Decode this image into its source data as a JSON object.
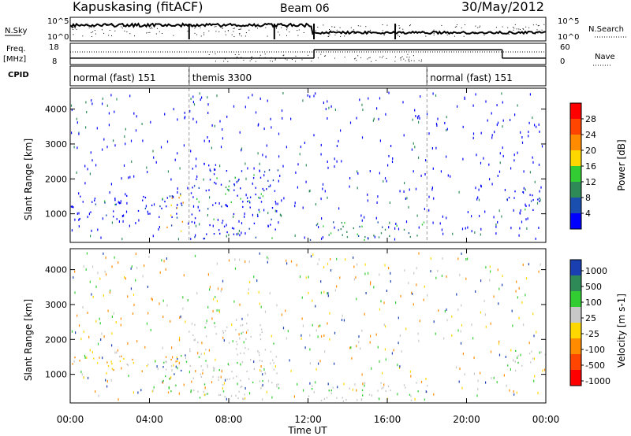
{
  "header": {
    "station": "Kapuskasing (fitACF)",
    "beam": "Beam 06",
    "date": "30/May/2012"
  },
  "panels": {
    "nsky_label": "N.Sky",
    "nsearch_label": "N.Search",
    "freq_label_line1": "Freq.",
    "freq_label_line2": "[MHz]",
    "nave_label": "Nave",
    "cpid_label": "CPID",
    "nsky_ticks": [
      "10^5",
      "10^0"
    ],
    "nsearch_ticks": [
      "10^5",
      "10^0"
    ],
    "freq_ticks": [
      "18",
      "8"
    ],
    "nave_ticks": [
      "60",
      "0"
    ],
    "cpid_segments": [
      {
        "label": "normal (fast) 151",
        "start_hour": 0,
        "end_hour": 6
      },
      {
        "label": "themis 3300",
        "start_hour": 6,
        "end_hour": 18
      },
      {
        "label": "normal (fast) 151",
        "start_hour": 18,
        "end_hour": 24
      }
    ]
  },
  "axes": {
    "ylabel": "Slant Range [km]",
    "xlabel": "Time UT",
    "yticks": [
      "1000",
      "2000",
      "3000",
      "4000"
    ],
    "xticks": [
      "00:00",
      "04:00",
      "08:00",
      "12:00",
      "16:00",
      "20:00",
      "00:00"
    ]
  },
  "power_colorbar": {
    "label": "Power [dB]",
    "ticks": [
      "28",
      "24",
      "20",
      "16",
      "12",
      "8",
      "4"
    ],
    "colors": [
      "#0000ff",
      "#1a4fb0",
      "#2e8b57",
      "#32cd32",
      "#ffd700",
      "#ff8c00",
      "#ff4500",
      "#ff0000"
    ]
  },
  "velocity_colorbar": {
    "label": "Velocity [m s-1]",
    "ticks": [
      "1000",
      "500",
      "100",
      "25",
      "-25",
      "-100",
      "-500",
      "-1000"
    ],
    "colors": [
      "#1a3fb0",
      "#2e8b57",
      "#32cd32",
      "#c8c8c8",
      "#ffd700",
      "#ff8c00",
      "#ff4500",
      "#ff0000"
    ]
  },
  "chart_data": {
    "type": "heatmap",
    "title": "Kapuskasing (fitACF) Beam 06 30/May/2012",
    "xlabel": "Time UT",
    "ylabel": "Slant Range [km]",
    "xlim_hours": [
      0,
      24
    ],
    "ylim_km": [
      180,
      4600
    ],
    "power_regions": [
      {
        "t0": 0.0,
        "t1": 5.6,
        "r0": 1100,
        "r1": 1550,
        "level": "low"
      },
      {
        "t0": 0.3,
        "t1": 5.5,
        "r0": 850,
        "r1": 1100,
        "level": "low"
      },
      {
        "t0": 4.6,
        "t1": 5.9,
        "r0": 500,
        "r1": 1600,
        "level": "high"
      },
      {
        "t0": 6.0,
        "t1": 10.5,
        "r0": 300,
        "r1": 2500,
        "level": "low"
      },
      {
        "t0": 7.8,
        "t1": 8.8,
        "r0": 1300,
        "r1": 2200,
        "level": "mid"
      },
      {
        "t0": 12.0,
        "t1": 18.0,
        "r0": 250,
        "r1": 800,
        "level": "mid"
      },
      {
        "t0": 22.0,
        "t1": 24.0,
        "r0": 1100,
        "r1": 1700,
        "level": "low"
      }
    ],
    "velocity_regions": [
      {
        "t0": 0.0,
        "t1": 5.6,
        "r0": 1100,
        "r1": 1550,
        "level": "neg"
      },
      {
        "t0": 4.6,
        "t1": 5.9,
        "r0": 500,
        "r1": 1600,
        "level": "mixed"
      },
      {
        "t0": 6.0,
        "t1": 10.5,
        "r0": 300,
        "r1": 2500,
        "level": "zero"
      },
      {
        "t0": 12.0,
        "t1": 18.0,
        "r0": 250,
        "r1": 800,
        "level": "zero"
      },
      {
        "t0": 22.0,
        "t1": 24.0,
        "r0": 1100,
        "r1": 1700,
        "level": "zero"
      }
    ],
    "freq_mhz": [
      {
        "t0": 0,
        "t1": 6,
        "v": 11
      },
      {
        "t0": 6,
        "t1": 12.3,
        "v": 11
      },
      {
        "t0": 12.3,
        "t1": 21.8,
        "v": 15
      },
      {
        "t0": 21.8,
        "t1": 24,
        "v": 11
      }
    ]
  }
}
